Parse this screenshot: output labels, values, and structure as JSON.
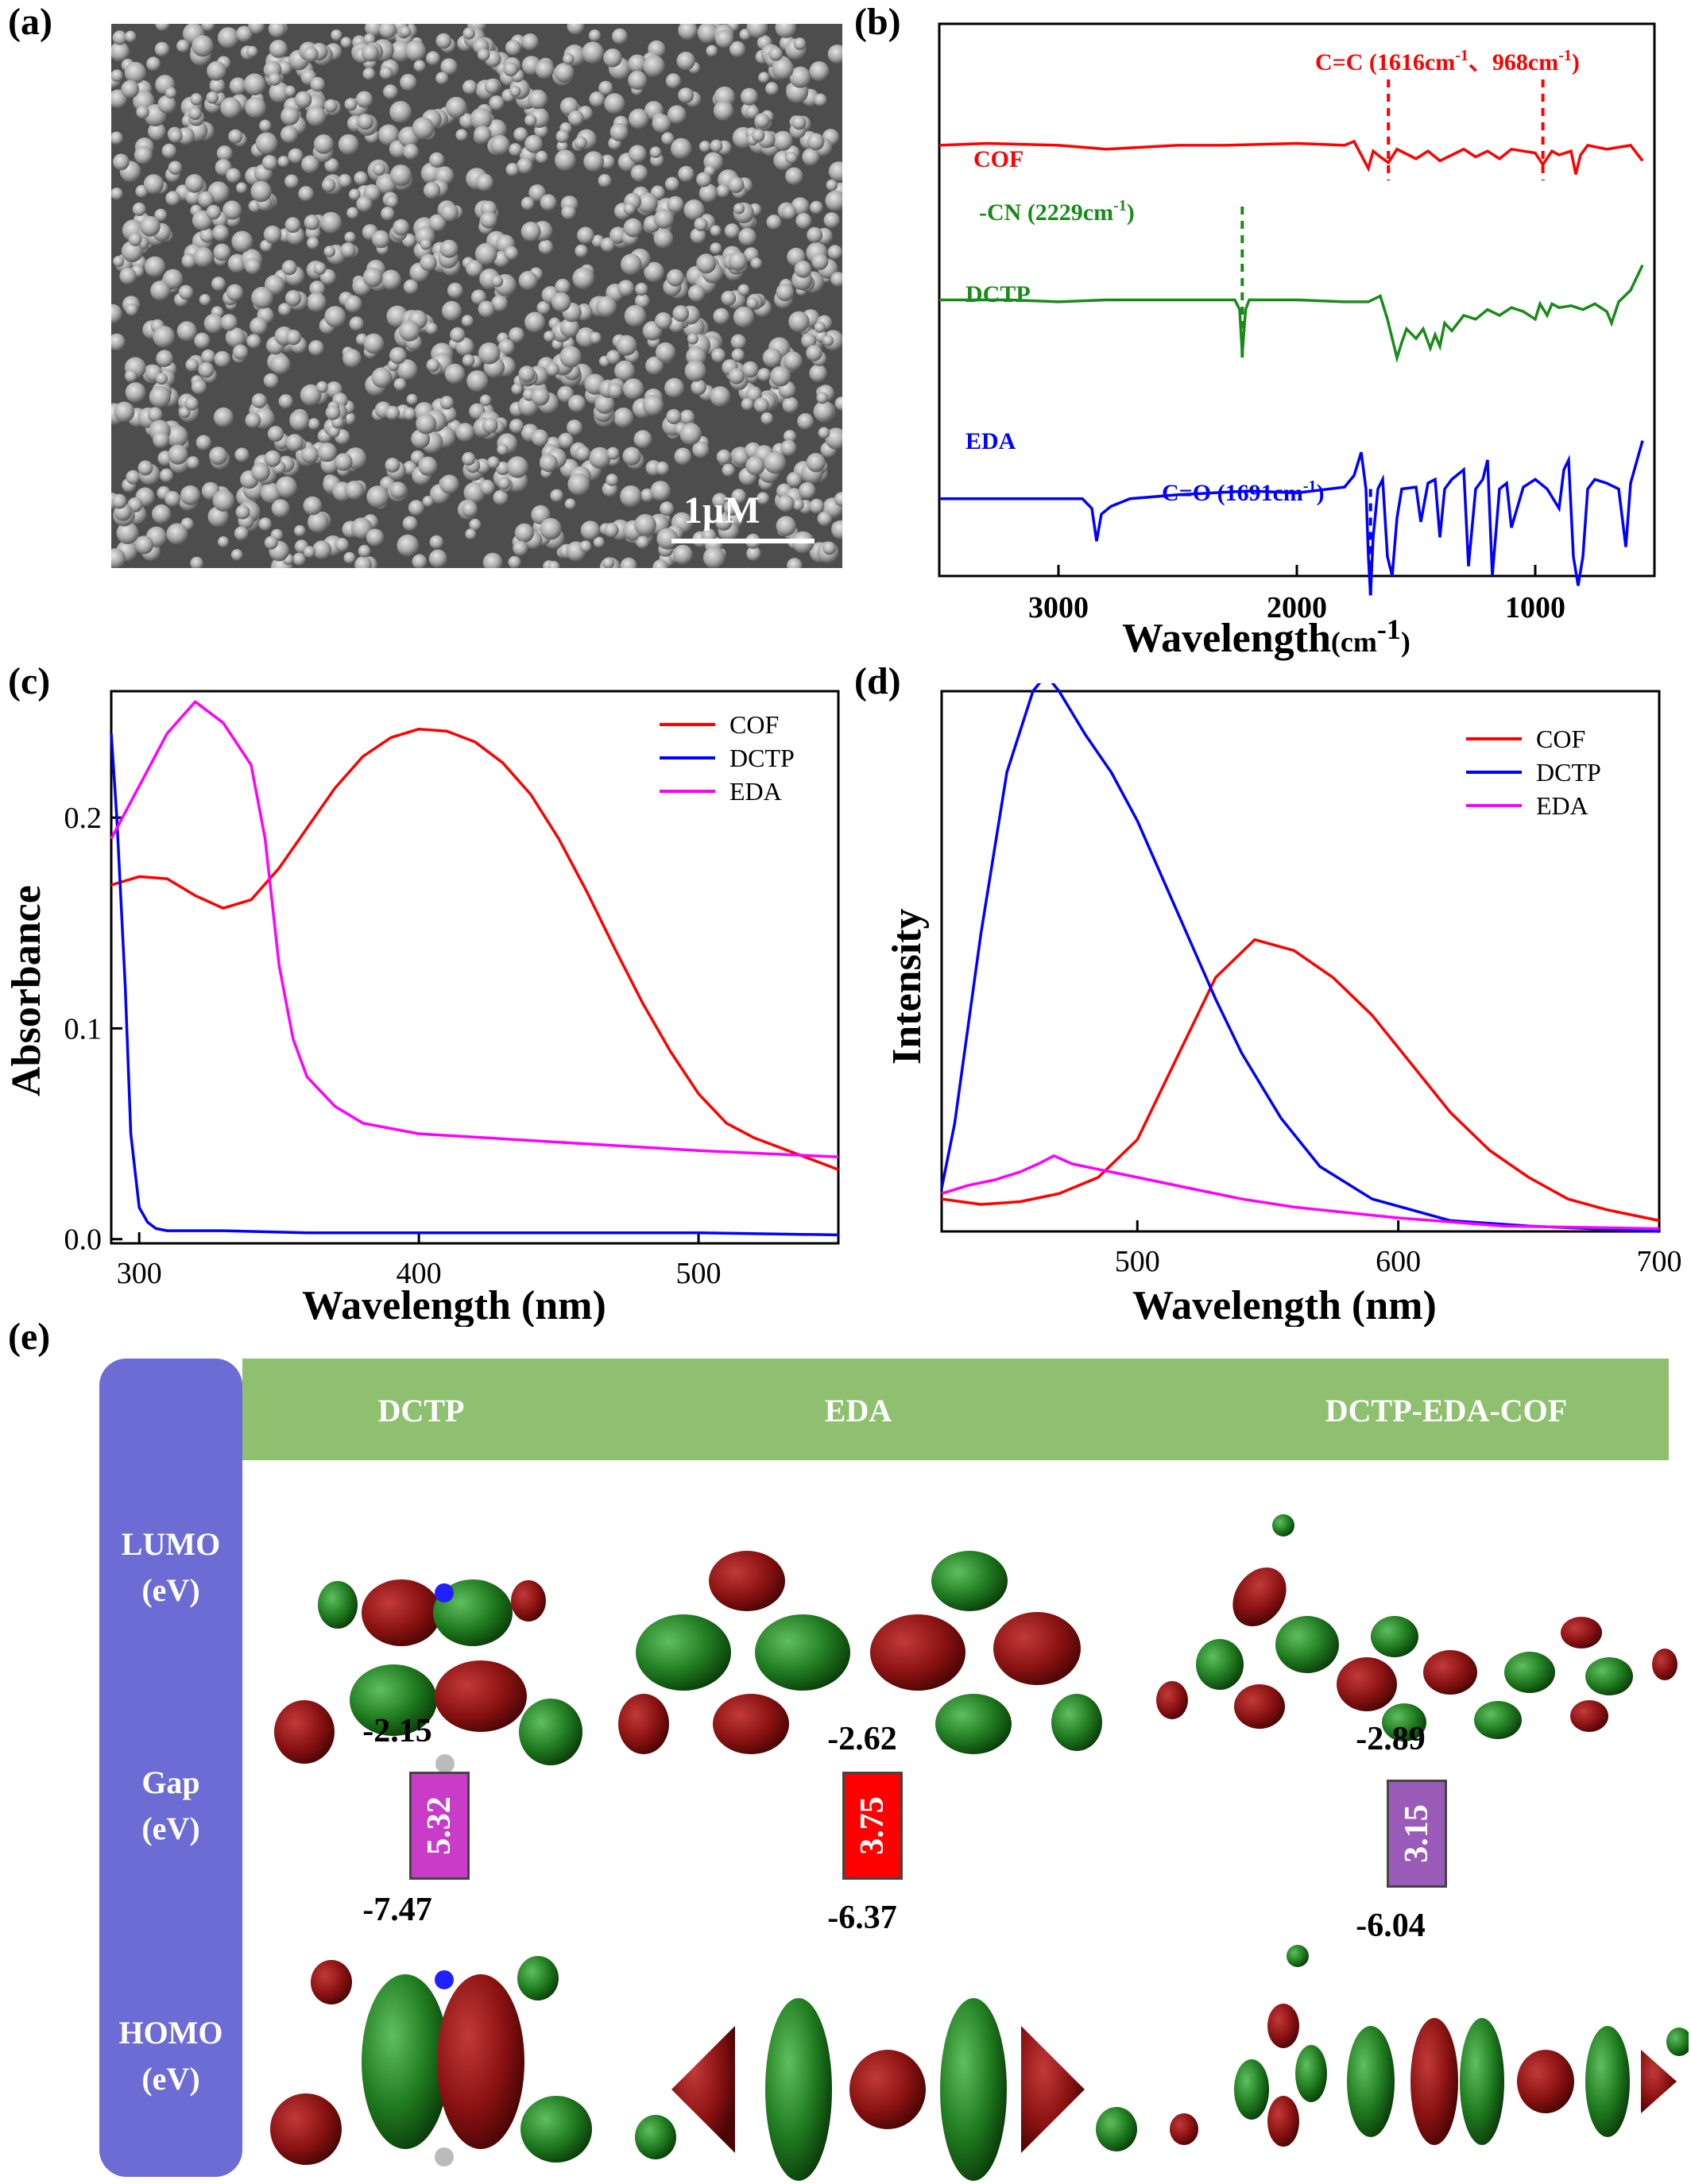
{
  "labels": {
    "a": "(a)",
    "b": "(b)",
    "c": "(c)",
    "d": "(d)",
    "e": "(e)"
  },
  "panel_a": {
    "scale_bar": "1μM"
  },
  "chart_data": [
    {
      "type": "line",
      "panel": "b",
      "title": "",
      "xlabel": "Wavelength",
      "xlabel_unit": "(cm",
      "xlabel_exp": "-1",
      "xlabel_close": ")",
      "xlim": [
        3500,
        500
      ],
      "xticks": [
        "3000",
        "2000",
        "1000"
      ],
      "xtick_values": [
        3000,
        2000,
        1000
      ],
      "series": [
        {
          "name": "COF",
          "color": "#ff0000",
          "offset": 0.78,
          "x": [
            3500,
            3300,
            3000,
            2800,
            2500,
            2300,
            2000,
            1800,
            1760,
            1730,
            1700,
            1680,
            1650,
            1616,
            1580,
            1500,
            1450,
            1400,
            1300,
            1250,
            1200,
            1150,
            1100,
            1000,
            968,
            930,
            900,
            850,
            830,
            810,
            780,
            700,
            600,
            550
          ],
          "y": [
            0.0,
            0.01,
            0.0,
            -0.02,
            0.0,
            0.0,
            0.01,
            0.0,
            0.02,
            -0.05,
            -0.12,
            -0.03,
            -0.06,
            -0.09,
            -0.02,
            -0.07,
            -0.03,
            -0.08,
            -0.02,
            -0.06,
            -0.03,
            -0.07,
            -0.02,
            -0.04,
            -0.1,
            -0.03,
            -0.05,
            -0.03,
            -0.15,
            -0.05,
            0.0,
            -0.02,
            0.0,
            -0.08
          ]
        },
        {
          "name": "DCTP",
          "color": "#1a8a1a",
          "offset": 0.5,
          "x": [
            3500,
            3200,
            3000,
            2800,
            2600,
            2400,
            2260,
            2240,
            2229,
            2215,
            2200,
            2000,
            1800,
            1700,
            1650,
            1620,
            1600,
            1580,
            1560,
            1540,
            1500,
            1470,
            1440,
            1420,
            1400,
            1380,
            1350,
            1300,
            1250,
            1200,
            1150,
            1100,
            1050,
            1000,
            980,
            950,
            930,
            900,
            850,
            800,
            750,
            700,
            680,
            650,
            600,
            550
          ],
          "y": [
            0.0,
            0.0,
            -0.01,
            0.0,
            0.0,
            0.0,
            0.0,
            -0.05,
            -0.28,
            -0.05,
            0.0,
            0.0,
            -0.01,
            -0.01,
            0.02,
            -0.1,
            -0.2,
            -0.3,
            -0.22,
            -0.15,
            -0.2,
            -0.15,
            -0.25,
            -0.18,
            -0.24,
            -0.12,
            -0.16,
            -0.08,
            -0.1,
            -0.05,
            -0.08,
            -0.04,
            -0.06,
            -0.1,
            -0.02,
            -0.08,
            -0.02,
            -0.04,
            -0.03,
            -0.05,
            -0.02,
            -0.06,
            -0.12,
            -0.01,
            0.05,
            0.18
          ]
        },
        {
          "name": "EDA",
          "color": "#0000ff",
          "offset": 0.14,
          "x": [
            3500,
            3200,
            3000,
            2900,
            2860,
            2840,
            2820,
            2780,
            2700,
            2500,
            2200,
            2000,
            1800,
            1760,
            1730,
            1710,
            1700,
            1691,
            1680,
            1660,
            1640,
            1620,
            1600,
            1580,
            1560,
            1500,
            1480,
            1450,
            1420,
            1400,
            1380,
            1350,
            1300,
            1280,
            1250,
            1220,
            1200,
            1180,
            1150,
            1120,
            1100,
            1050,
            1000,
            950,
            900,
            880,
            860,
            840,
            820,
            800,
            780,
            750,
            700,
            650,
            620,
            600,
            550
          ],
          "y": [
            0.0,
            0.0,
            0.0,
            0.0,
            -0.05,
            -0.22,
            -0.08,
            -0.04,
            0.0,
            0.02,
            0.04,
            0.03,
            0.06,
            0.12,
            0.24,
            0.05,
            -0.3,
            -0.5,
            -0.2,
            0.05,
            0.1,
            -0.3,
            -0.4,
            -0.1,
            0.05,
            0.06,
            -0.12,
            0.08,
            0.1,
            -0.2,
            0.05,
            0.1,
            0.15,
            -0.35,
            0.05,
            0.1,
            0.2,
            -0.4,
            0.05,
            0.08,
            -0.15,
            0.06,
            0.1,
            0.05,
            -0.05,
            0.15,
            0.2,
            -0.3,
            -0.45,
            -0.3,
            0.05,
            0.1,
            0.08,
            0.05,
            -0.25,
            0.08,
            0.3
          ]
        }
      ],
      "annotations": [
        {
          "text": "C=C (1616cm",
          "sup": "-1",
          "text2": "、968cm",
          "sup2": "-1",
          "text3": ")",
          "color": "#ff0000"
        },
        {
          "text": "-CN (2229cm",
          "sup": "-1",
          "text2": ")",
          "color": "#1a8a1a"
        },
        {
          "text": "C=O (1691cm",
          "sup": "-1",
          "text2": ")",
          "color": "#0000ff"
        }
      ],
      "series_labels": [
        "COF",
        "DCTP",
        "EDA"
      ]
    },
    {
      "type": "line",
      "panel": "c",
      "xlabel": "Wavelength (nm)",
      "ylabel": "Absorbance",
      "xlim": [
        290,
        550
      ],
      "ylim": [
        -0.002,
        0.26
      ],
      "xticks": [
        "300",
        "400",
        "500"
      ],
      "xtick_values": [
        300,
        400,
        500
      ],
      "yticks": [
        "0.0",
        "0.1",
        "0.2"
      ],
      "ytick_values": [
        0.0,
        0.1,
        0.2
      ],
      "legend": [
        "COF",
        "DCTP",
        "EDA"
      ],
      "legend_position": "top-right",
      "series": [
        {
          "name": "COF",
          "color": "#ff0000",
          "x": [
            290,
            300,
            310,
            320,
            330,
            340,
            350,
            360,
            370,
            380,
            390,
            400,
            410,
            420,
            430,
            440,
            450,
            460,
            470,
            480,
            490,
            500,
            510,
            520,
            530,
            540,
            550
          ],
          "y": [
            0.168,
            0.172,
            0.171,
            0.163,
            0.157,
            0.161,
            0.176,
            0.195,
            0.214,
            0.229,
            0.238,
            0.242,
            0.241,
            0.236,
            0.226,
            0.211,
            0.19,
            0.165,
            0.138,
            0.112,
            0.089,
            0.069,
            0.055,
            0.048,
            0.043,
            0.038,
            0.033
          ]
        },
        {
          "name": "DCTP",
          "color": "#0000ff",
          "x": [
            290,
            292,
            295,
            297,
            300,
            303,
            306,
            310,
            330,
            360,
            400,
            450,
            500,
            550
          ],
          "y": [
            0.24,
            0.2,
            0.12,
            0.05,
            0.015,
            0.008,
            0.005,
            0.004,
            0.004,
            0.003,
            0.003,
            0.003,
            0.003,
            0.002
          ]
        },
        {
          "name": "EDA",
          "color": "#ff00ff",
          "x": [
            290,
            300,
            310,
            320,
            330,
            340,
            345,
            350,
            355,
            360,
            370,
            380,
            400,
            450,
            500,
            550
          ],
          "y": [
            0.19,
            0.215,
            0.24,
            0.255,
            0.245,
            0.225,
            0.19,
            0.13,
            0.095,
            0.077,
            0.063,
            0.055,
            0.05,
            0.046,
            0.042,
            0.039
          ]
        }
      ]
    },
    {
      "type": "line",
      "panel": "d",
      "xlabel": "Wavelength (nm)",
      "ylabel": "Intensity",
      "xlim": [
        425,
        700
      ],
      "ylim": [
        0,
        1.0
      ],
      "xticks": [
        "500",
        "600",
        "700"
      ],
      "xtick_values": [
        500,
        600,
        700
      ],
      "legend": [
        "COF",
        "DCTP",
        "EDA"
      ],
      "legend_position": "top-right",
      "series": [
        {
          "name": "COF",
          "color": "#ff0000",
          "x": [
            425,
            440,
            455,
            470,
            485,
            500,
            515,
            530,
            545,
            560,
            575,
            590,
            605,
            620,
            635,
            650,
            665,
            680,
            700
          ],
          "y": [
            0.06,
            0.05,
            0.055,
            0.07,
            0.1,
            0.17,
            0.32,
            0.47,
            0.54,
            0.52,
            0.47,
            0.4,
            0.31,
            0.22,
            0.15,
            0.1,
            0.06,
            0.04,
            0.02
          ]
        },
        {
          "name": "DCTP",
          "color": "#0000ff",
          "x": [
            425,
            430,
            440,
            450,
            460,
            465,
            470,
            480,
            490,
            500,
            510,
            520,
            530,
            540,
            555,
            570,
            590,
            620,
            650,
            700
          ],
          "y": [
            0.08,
            0.2,
            0.55,
            0.85,
            1.0,
            1.03,
            1.0,
            0.92,
            0.85,
            0.76,
            0.65,
            0.54,
            0.43,
            0.33,
            0.21,
            0.12,
            0.06,
            0.02,
            0.01,
            0.0
          ]
        },
        {
          "name": "EDA",
          "color": "#ff00ff",
          "x": [
            425,
            435,
            445,
            455,
            462,
            468,
            475,
            485,
            500,
            520,
            540,
            560,
            580,
            600,
            640,
            700
          ],
          "y": [
            0.07,
            0.085,
            0.095,
            0.11,
            0.125,
            0.14,
            0.125,
            0.115,
            0.1,
            0.08,
            0.06,
            0.045,
            0.035,
            0.025,
            0.01,
            0.005
          ]
        }
      ]
    }
  ],
  "panel_e": {
    "columns": [
      "DCTP",
      "EDA",
      "DCTP-EDA-COF"
    ],
    "rows": [
      {
        "line1": "LUMO",
        "line2": "(eV)"
      },
      {
        "line1": "Gap",
        "line2": "(eV)"
      },
      {
        "line1": "HOMO",
        "line2": "(eV)"
      }
    ],
    "lumo": [
      "-2.15",
      "-2.62",
      "-2.89"
    ],
    "gap": [
      "5.32",
      "3.75",
      "3.15"
    ],
    "homo": [
      "-7.47",
      "-6.37",
      "-6.04"
    ],
    "gap_colors": [
      "#c83cc8",
      "#ff0000",
      "#9a5ab8"
    ],
    "header_color": "#8fc070",
    "rowhead_color": "#6d6bd4",
    "orbital_colors": {
      "positive": "#8b1212",
      "negative": "#1f7a1f"
    }
  }
}
